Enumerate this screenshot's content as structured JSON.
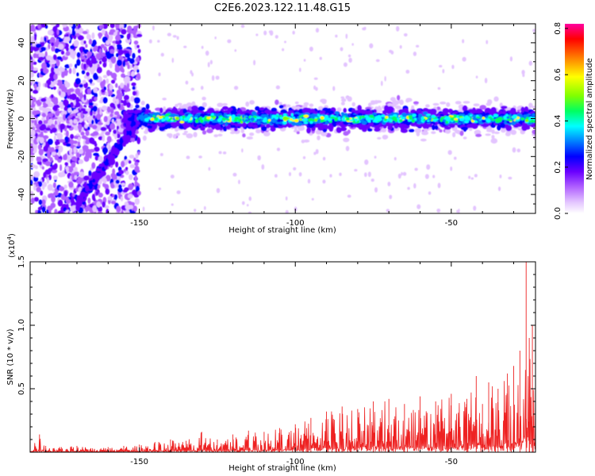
{
  "figure_title": "C2E6.2023.122.11.48.G15",
  "chart_data": [
    {
      "type": "heatmap",
      "xlabel": "Height of straight line (km)",
      "ylabel": "Frequency (Hz)",
      "xlim": [
        -185,
        -23
      ],
      "ylim": [
        -50,
        50
      ],
      "x_ticks": [
        -150,
        -100,
        -50
      ],
      "y_ticks": [
        -40,
        -20,
        0,
        20,
        40
      ],
      "colorbar": {
        "label": "Normalized spectral amplitude",
        "range": [
          0.0,
          0.82
        ],
        "ticks": [
          "0.0",
          "0.2",
          "0.4",
          "0.6",
          "0.8"
        ],
        "colors": [
          "#ffffff",
          "#e3c4ff",
          "#b060ff",
          "#6a00ff",
          "#0000ff",
          "#0080ff",
          "#00ffff",
          "#00ff60",
          "#80ff00",
          "#ffff00",
          "#ff8000",
          "#ff0000",
          "#ff00a0"
        ]
      },
      "description": "Band of strong spectral amplitude centered near 0 Hz from about -155 km to -23 km; scattered weaker power spanning the full frequency range between about -185 km and -150 km, with a diagonal streak from about -170 km at -45 Hz rising to about -150 km at 0 Hz"
    },
    {
      "type": "line",
      "xlabel": "Height of straight line (km)",
      "ylabel": "SNR (10 * v/v)",
      "y_multiplier": "(x10",
      "y_multiplier_exp": "4",
      "y_multiplier_close": ")",
      "xlim": [
        -185,
        -23
      ],
      "ylim": [
        0,
        1.5
      ],
      "x_ticks": [
        -150,
        -100,
        -50
      ],
      "y_ticks": [
        "0.5",
        "1.0",
        "1.5"
      ],
      "series": [
        {
          "color": "#ee2222",
          "x": [
            -185,
            -182,
            -180,
            -175,
            -170,
            -165,
            -160,
            -155,
            -150,
            -145,
            -140,
            -135,
            -130,
            -125,
            -120,
            -115,
            -110,
            -105,
            -100,
            -95,
            -90,
            -85,
            -80,
            -75,
            -70,
            -65,
            -60,
            -55,
            -50,
            -45,
            -42,
            -40,
            -38,
            -35,
            -32,
            -30,
            -28,
            -26,
            -25,
            -24,
            -23
          ],
          "y": [
            0.02,
            0.14,
            0.05,
            0.04,
            0.05,
            0.03,
            0.04,
            0.05,
            0.06,
            0.08,
            0.1,
            0.09,
            0.16,
            0.1,
            0.14,
            0.17,
            0.16,
            0.19,
            0.22,
            0.27,
            0.32,
            0.36,
            0.34,
            0.4,
            0.42,
            0.38,
            0.44,
            0.4,
            0.46,
            0.42,
            0.6,
            0.38,
            0.55,
            0.5,
            0.62,
            0.68,
            0.8,
            1.5,
            0.9,
            1.0,
            0.7
          ]
        }
      ]
    }
  ]
}
